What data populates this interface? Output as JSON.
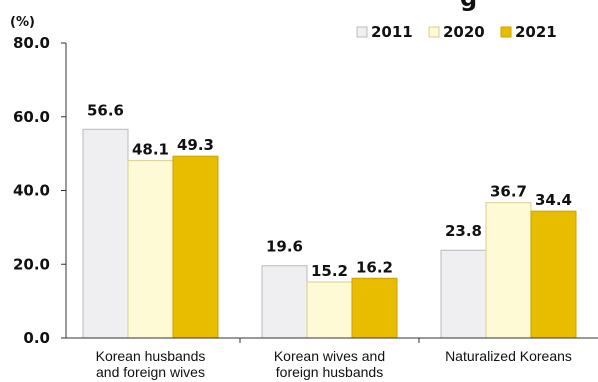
{
  "chart_data": {
    "type": "bar",
    "title": "",
    "unit_label": "(%)",
    "categories": [
      [
        "Korean husbands",
        "and foreign wives"
      ],
      [
        "Korean wives and",
        "foreign husbands"
      ],
      [
        "Naturalized Koreans"
      ]
    ],
    "series": [
      {
        "name": "2011",
        "values": [
          56.6,
          19.6,
          23.8
        ],
        "color": "#efeff2",
        "stroke": "#b8b8c0"
      },
      {
        "name": "2020",
        "values": [
          48.1,
          15.2,
          36.7
        ],
        "color": "#fefad6",
        "stroke": "#d8cf8e"
      },
      {
        "name": "2021",
        "values": [
          49.3,
          16.2,
          34.4
        ],
        "color": "#e8bd00",
        "stroke": "#c9a200"
      }
    ],
    "ylim": [
      0,
      80
    ],
    "yticks": [
      "0.0",
      "20.0",
      "40.0",
      "60.0",
      "80.0"
    ],
    "ytick_values": [
      0,
      20,
      40,
      60,
      80
    ],
    "legend_position": "top-right",
    "grid": false,
    "data_labels": true
  }
}
